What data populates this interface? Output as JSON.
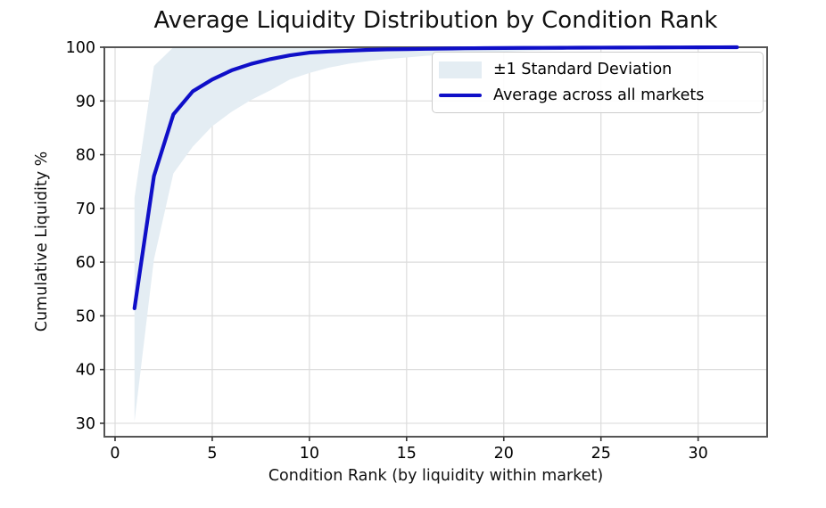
{
  "colors": {
    "band_fill": "#e4edf3",
    "line_color": "#0f0fc8",
    "grid_color": "#dcdcdc",
    "spine_color": "#555555",
    "tick_color": "#333333",
    "background": "#ffffff"
  },
  "chart_data": {
    "type": "line",
    "title": "Average Liquidity Distribution by Condition Rank",
    "xlabel": "Condition Rank (by liquidity within market)",
    "ylabel": "Cumulative Liquidity %",
    "xlim": [
      -0.55,
      33.55
    ],
    "ylim": [
      27.5,
      100
    ],
    "x_ticks": [
      0,
      5,
      10,
      15,
      20,
      25,
      30
    ],
    "y_ticks": [
      30,
      40,
      50,
      60,
      70,
      80,
      90,
      100
    ],
    "grid": true,
    "legend_position": "upper right",
    "x": [
      1,
      2,
      3,
      4,
      5,
      6,
      7,
      8,
      9,
      10,
      11,
      12,
      13,
      14,
      15,
      16,
      17,
      18,
      19,
      20,
      21,
      22,
      23,
      24,
      25,
      26,
      27,
      28,
      29,
      30,
      31,
      32
    ],
    "band": {
      "name": "±1 Standard Deviation",
      "upper": [
        72.0,
        96.5,
        100,
        100,
        100,
        100,
        100,
        100,
        100,
        100,
        100,
        100,
        100,
        100,
        100,
        100,
        100,
        100,
        100,
        100,
        100,
        100,
        100,
        100,
        100,
        100,
        100,
        100,
        100,
        100,
        100,
        100
      ],
      "lower": [
        30.3,
        60.5,
        76.5,
        81.5,
        85.3,
        88.0,
        90.2,
        92.0,
        94.0,
        95.2,
        96.2,
        96.9,
        97.4,
        97.8,
        98.1,
        98.4,
        98.6,
        98.8,
        99.0,
        99.15,
        99.3,
        99.4,
        99.5,
        99.58,
        99.65,
        99.7,
        99.75,
        99.8,
        99.85,
        99.9,
        99.95,
        100.0
      ]
    },
    "line": {
      "name": "Average across all markets",
      "values": [
        51.4,
        76.0,
        87.5,
        91.8,
        94.0,
        95.7,
        96.9,
        97.8,
        98.5,
        99.0,
        99.2,
        99.35,
        99.5,
        99.6,
        99.65,
        99.7,
        99.75,
        99.8,
        99.83,
        99.85,
        99.87,
        99.89,
        99.9,
        99.92,
        99.93,
        99.94,
        99.95,
        99.96,
        99.97,
        99.98,
        99.99,
        100.0
      ]
    }
  }
}
